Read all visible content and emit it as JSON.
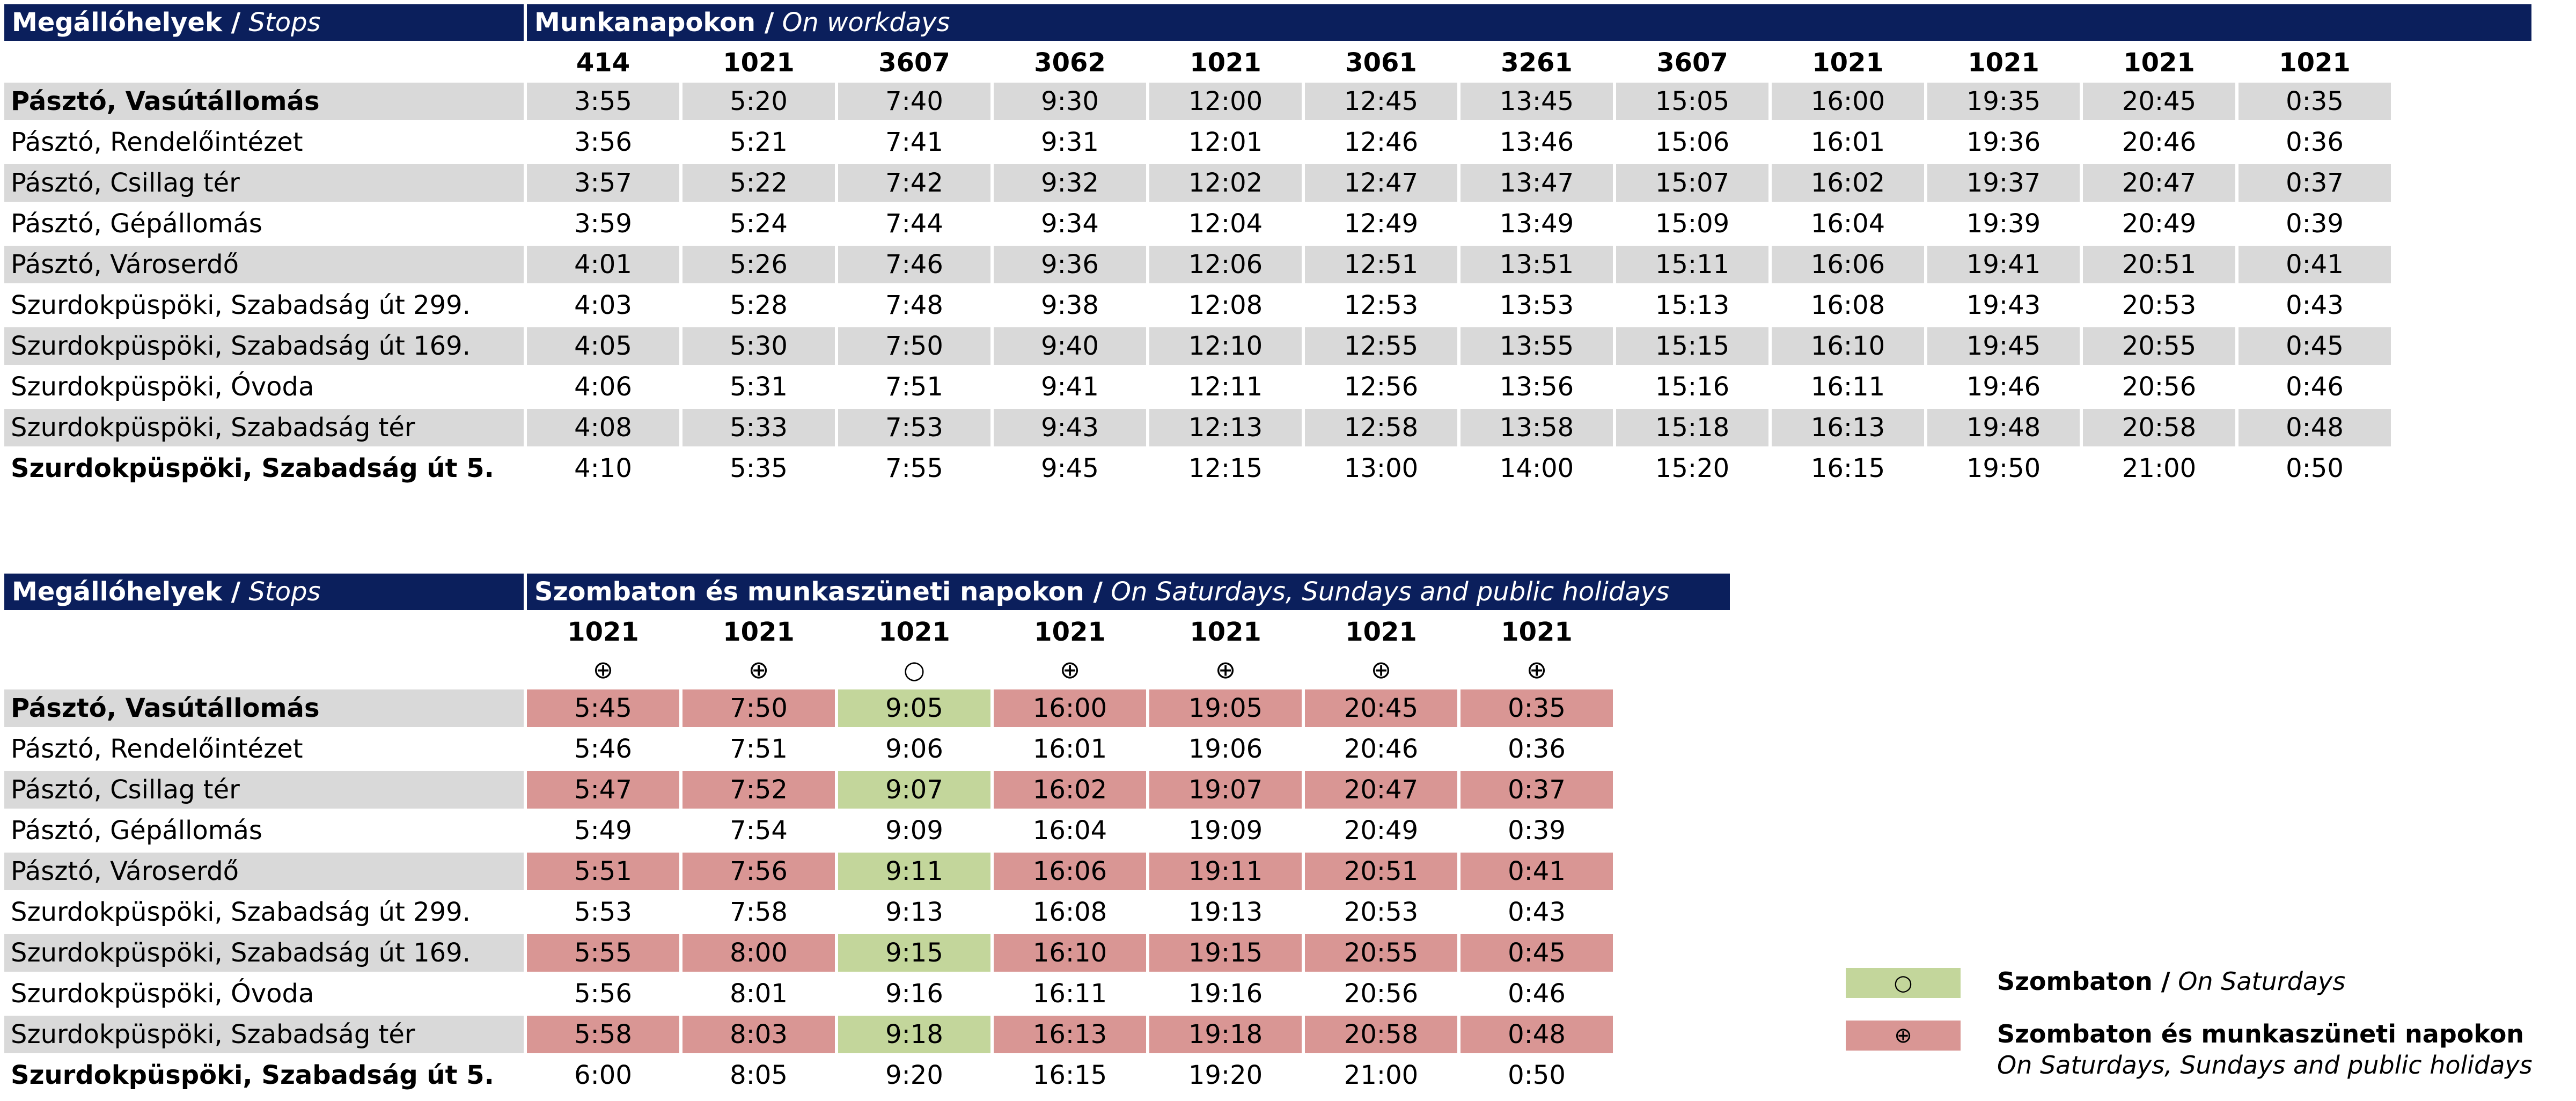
{
  "colors": {
    "header_bg": "#0b1f5c",
    "row_shade": "#d9d9d9",
    "saturday": "#c3d69b",
    "weekend_holiday": "#d99694"
  },
  "workdays": {
    "stops_header_bold": "Megállóhelyek /",
    "stops_header_italic": "Stops",
    "title_bold": "Munkanapokon /",
    "title_italic": "On workdays",
    "trips": [
      "414",
      "1021",
      "3607",
      "3062",
      "1021",
      "3061",
      "3261",
      "3607",
      "1021",
      "1021",
      "1021",
      "1021"
    ],
    "rows": [
      {
        "stop": "Pásztó, Vasútállomás",
        "times": [
          "3:55",
          "5:20",
          "7:40",
          "9:30",
          "12:00",
          "12:45",
          "13:45",
          "15:05",
          "16:00",
          "19:35",
          "20:45",
          "0:35"
        ]
      },
      {
        "stop": "Pásztó, Rendelőintézet",
        "times": [
          "3:56",
          "5:21",
          "7:41",
          "9:31",
          "12:01",
          "12:46",
          "13:46",
          "15:06",
          "16:01",
          "19:36",
          "20:46",
          "0:36"
        ]
      },
      {
        "stop": "Pásztó, Csillag tér",
        "times": [
          "3:57",
          "5:22",
          "7:42",
          "9:32",
          "12:02",
          "12:47",
          "13:47",
          "15:07",
          "16:02",
          "19:37",
          "20:47",
          "0:37"
        ]
      },
      {
        "stop": "Pásztó, Gépállomás",
        "times": [
          "3:59",
          "5:24",
          "7:44",
          "9:34",
          "12:04",
          "12:49",
          "13:49",
          "15:09",
          "16:04",
          "19:39",
          "20:49",
          "0:39"
        ]
      },
      {
        "stop": "Pásztó, Városerdő",
        "times": [
          "4:01",
          "5:26",
          "7:46",
          "9:36",
          "12:06",
          "12:51",
          "13:51",
          "15:11",
          "16:06",
          "19:41",
          "20:51",
          "0:41"
        ]
      },
      {
        "stop": "Szurdokpüspöki, Szabadság út 299.",
        "times": [
          "4:03",
          "5:28",
          "7:48",
          "9:38",
          "12:08",
          "12:53",
          "13:53",
          "15:13",
          "16:08",
          "19:43",
          "20:53",
          "0:43"
        ]
      },
      {
        "stop": "Szurdokpüspöki, Szabadság út 169.",
        "times": [
          "4:05",
          "5:30",
          "7:50",
          "9:40",
          "12:10",
          "12:55",
          "13:55",
          "15:15",
          "16:10",
          "19:45",
          "20:55",
          "0:45"
        ]
      },
      {
        "stop": "Szurdokpüspöki, Óvoda",
        "times": [
          "4:06",
          "5:31",
          "7:51",
          "9:41",
          "12:11",
          "12:56",
          "13:56",
          "15:16",
          "16:11",
          "19:46",
          "20:56",
          "0:46"
        ]
      },
      {
        "stop": "Szurdokpüspöki, Szabadság tér",
        "times": [
          "4:08",
          "5:33",
          "7:53",
          "9:43",
          "12:13",
          "12:58",
          "13:58",
          "15:18",
          "16:13",
          "19:48",
          "20:58",
          "0:48"
        ]
      },
      {
        "stop": "Szurdokpüspöki, Szabadság út 5.",
        "times": [
          "4:10",
          "5:35",
          "7:55",
          "9:45",
          "12:15",
          "13:00",
          "14:00",
          "15:20",
          "16:15",
          "19:50",
          "21:00",
          "0:50"
        ]
      }
    ]
  },
  "weekend": {
    "stops_header_bold": "Megállóhelyek /",
    "stops_header_italic": "Stops",
    "title_bold": "Szombaton és munkaszüneti napokon /",
    "title_italic": "On Saturdays, Sundays and public holidays",
    "trips": [
      "1021",
      "1021",
      "1021",
      "1021",
      "1021",
      "1021",
      "1021"
    ],
    "symbols": [
      "⊕",
      "⊕",
      "○",
      "⊕",
      "⊕",
      "⊕",
      "⊕"
    ],
    "col_types": [
      "weekend_holiday",
      "weekend_holiday",
      "saturday",
      "weekend_holiday",
      "weekend_holiday",
      "weekend_holiday",
      "weekend_holiday"
    ],
    "rows": [
      {
        "stop": "Pásztó, Vasútállomás",
        "times": [
          "5:45",
          "7:50",
          "9:05",
          "16:00",
          "19:05",
          "20:45",
          "0:35"
        ]
      },
      {
        "stop": "Pásztó, Rendelőintézet",
        "times": [
          "5:46",
          "7:51",
          "9:06",
          "16:01",
          "19:06",
          "20:46",
          "0:36"
        ]
      },
      {
        "stop": "Pásztó, Csillag tér",
        "times": [
          "5:47",
          "7:52",
          "9:07",
          "16:02",
          "19:07",
          "20:47",
          "0:37"
        ]
      },
      {
        "stop": "Pásztó, Gépállomás",
        "times": [
          "5:49",
          "7:54",
          "9:09",
          "16:04",
          "19:09",
          "20:49",
          "0:39"
        ]
      },
      {
        "stop": "Pásztó, Városerdő",
        "times": [
          "5:51",
          "7:56",
          "9:11",
          "16:06",
          "19:11",
          "20:51",
          "0:41"
        ]
      },
      {
        "stop": "Szurdokpüspöki, Szabadság út 299.",
        "times": [
          "5:53",
          "7:58",
          "9:13",
          "16:08",
          "19:13",
          "20:53",
          "0:43"
        ]
      },
      {
        "stop": "Szurdokpüspöki, Szabadság út 169.",
        "times": [
          "5:55",
          "8:00",
          "9:15",
          "16:10",
          "19:15",
          "20:55",
          "0:45"
        ]
      },
      {
        "stop": "Szurdokpüspöki, Óvoda",
        "times": [
          "5:56",
          "8:01",
          "9:16",
          "16:11",
          "19:16",
          "20:56",
          "0:46"
        ]
      },
      {
        "stop": "Szurdokpüspöki, Szabadság tér",
        "times": [
          "5:58",
          "8:03",
          "9:18",
          "16:13",
          "19:18",
          "20:58",
          "0:48"
        ]
      },
      {
        "stop": "Szurdokpüspöki, Szabadság út 5.",
        "times": [
          "6:00",
          "8:05",
          "9:20",
          "16:15",
          "19:20",
          "21:00",
          "0:50"
        ]
      }
    ]
  },
  "legend": [
    {
      "symbol": "○",
      "type": "saturday",
      "label_bold": "Szombaton /",
      "label_italic": "On Saturdays",
      "label_italic_2": ""
    },
    {
      "symbol": "⊕",
      "type": "weekend_holiday",
      "label_bold": "Szombaton és munkaszüneti napokon",
      "label_italic": "",
      "label_italic_2": "On Saturdays, Sundays and public holidays"
    }
  ]
}
